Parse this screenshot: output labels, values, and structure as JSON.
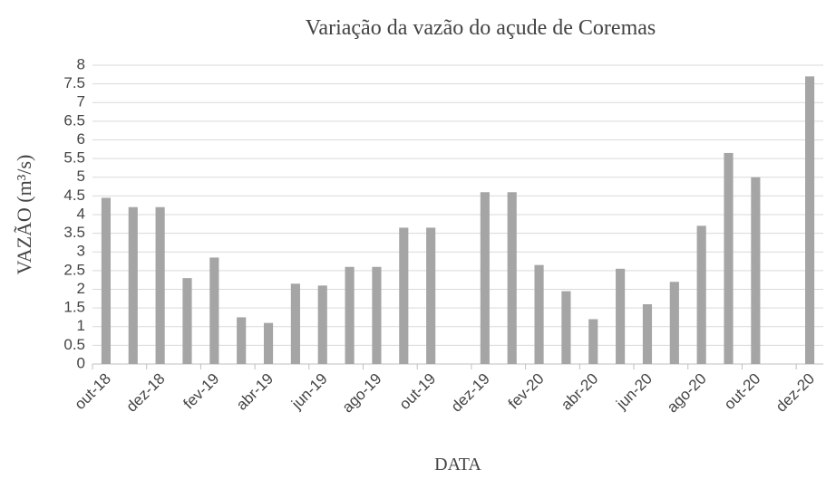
{
  "chart_data": {
    "type": "bar",
    "title": "Variação da vazão do açude de Coremas",
    "x_label": "DATA",
    "y_label": "VAZÃO (m³/s)",
    "categories": [
      "out-18",
      null,
      "dez-18",
      null,
      "fev-19",
      null,
      "abr-19",
      null,
      "jun-19",
      null,
      "ago-19",
      null,
      "out-19",
      null,
      "dez-19",
      null,
      "fev-20",
      null,
      "abr-20",
      null,
      "jun-20",
      null,
      "ago-20",
      null,
      "out-20",
      null,
      "dez-20"
    ],
    "values": [
      4.45,
      4.2,
      4.2,
      2.3,
      2.85,
      1.25,
      1.1,
      2.15,
      2.1,
      2.6,
      2.6,
      3.65,
      3.65,
      null,
      4.6,
      4.6,
      2.65,
      1.95,
      1.2,
      2.55,
      1.6,
      2.2,
      3.7,
      5.65,
      5.0,
      null,
      7.7
    ],
    "color": "#a5a5a5",
    "ylim": [
      0,
      8
    ],
    "yticks": [
      0,
      0.5,
      1,
      1.5,
      2,
      2.5,
      3,
      3.5,
      4,
      4.5,
      5,
      5.5,
      6,
      6.5,
      7,
      7.5,
      8
    ],
    "grid": true
  }
}
